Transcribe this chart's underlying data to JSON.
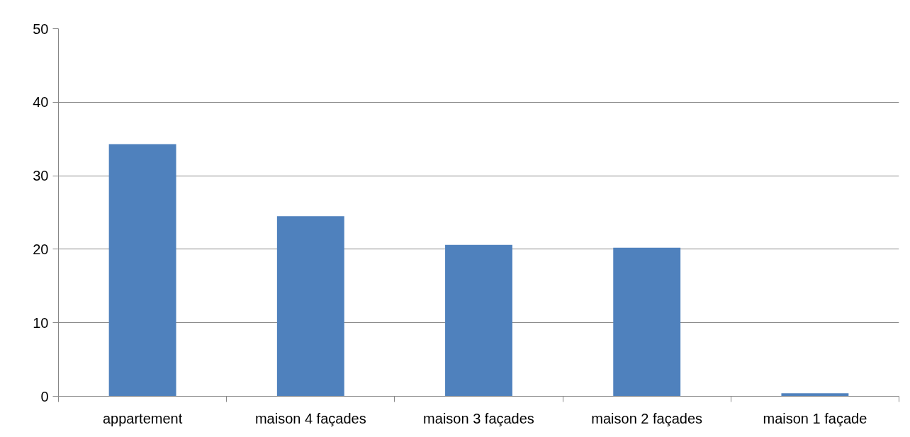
{
  "chart_data": {
    "type": "bar",
    "categories": [
      "appartement",
      "maison 4 façades",
      "maison 3 façades",
      "maison 2 façades",
      "maison 1 façade"
    ],
    "values": [
      34.3,
      24.5,
      20.6,
      20.2,
      0.4
    ],
    "color": "#4f81bd",
    "ylim": [
      0,
      50
    ],
    "yticks": [
      0,
      10,
      20,
      30,
      40,
      50
    ],
    "grid": "y"
  }
}
